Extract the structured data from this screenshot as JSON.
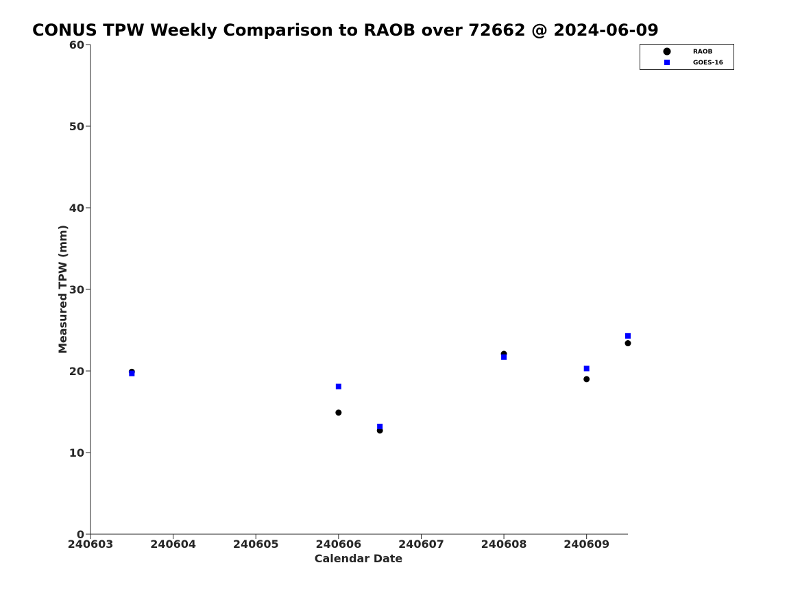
{
  "chart_data": {
    "type": "scatter",
    "title": "CONUS TPW Weekly Comparison to RAOB over 72662 @ 2024-06-09",
    "xlabel": "Calendar Date",
    "ylabel": "Measured TPW (mm)",
    "xlim": [
      240603,
      240609.5
    ],
    "ylim": [
      0,
      60
    ],
    "x_ticks": [
      240603,
      240604,
      240605,
      240606,
      240607,
      240608,
      240609
    ],
    "x_tick_labels": [
      "240603",
      "240604",
      "240605",
      "240606",
      "240607",
      "240608",
      "240609"
    ],
    "y_ticks": [
      0,
      10,
      20,
      30,
      40,
      50,
      60
    ],
    "y_tick_labels": [
      "0",
      "10",
      "20",
      "30",
      "40",
      "50",
      "60"
    ],
    "grid": false,
    "legend_position": "top-right",
    "series": [
      {
        "name": "RAOB",
        "marker": "circle",
        "color": "#000000",
        "x": [
          240603.5,
          240606,
          240606.5,
          240608,
          240609,
          240609.5
        ],
        "y": [
          19.9,
          14.9,
          12.7,
          22.1,
          19.0,
          23.4
        ]
      },
      {
        "name": "GOES-16",
        "marker": "square",
        "color": "#0000ff",
        "x": [
          240603.5,
          240606,
          240606.5,
          240608,
          240609,
          240609.5
        ],
        "y": [
          19.7,
          18.1,
          13.2,
          21.7,
          20.3,
          24.3
        ]
      }
    ]
  }
}
